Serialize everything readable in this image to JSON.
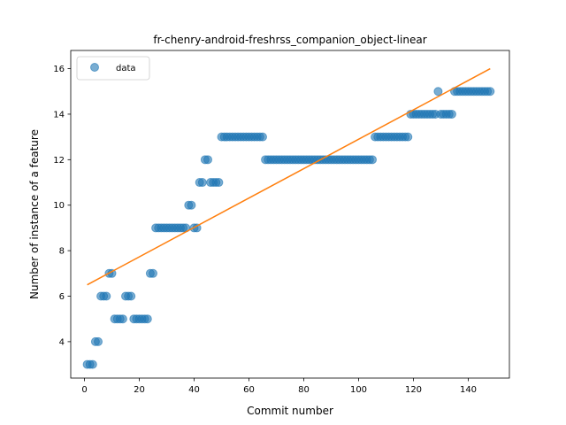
{
  "chart_data": {
    "type": "scatter",
    "title": "fr-chenry-android-freshrss_companion_object-linear",
    "xlabel": "Commit number",
    "ylabel": "Number of instance of a feature",
    "xlim": [
      -5,
      155
    ],
    "ylim": [
      2.4,
      16.8
    ],
    "xticks": [
      0,
      20,
      40,
      60,
      80,
      100,
      120,
      140
    ],
    "yticks": [
      4,
      6,
      8,
      10,
      12,
      14,
      16
    ],
    "grid": false,
    "legend": {
      "position": "upper-left",
      "entries": [
        "data"
      ]
    },
    "colors": {
      "points": "#1f77b4",
      "fit": "#ff7f0e"
    },
    "series": [
      {
        "name": "data",
        "kind": "scatter",
        "x": [
          1,
          2,
          3,
          4,
          5,
          6,
          7,
          8,
          9,
          10,
          11,
          12,
          13,
          14,
          15,
          16,
          17,
          18,
          19,
          20,
          21,
          22,
          23,
          24,
          25,
          26,
          27,
          28,
          29,
          30,
          31,
          32,
          33,
          34,
          35,
          36,
          37,
          38,
          39,
          40,
          41,
          42,
          43,
          44,
          45,
          46,
          47,
          48,
          49,
          50,
          51,
          52,
          53,
          54,
          55,
          56,
          57,
          58,
          59,
          60,
          61,
          62,
          63,
          64,
          65,
          66,
          67,
          68,
          69,
          70,
          71,
          72,
          73,
          74,
          75,
          76,
          77,
          78,
          79,
          80,
          81,
          82,
          83,
          84,
          85,
          86,
          87,
          88,
          89,
          90,
          91,
          92,
          93,
          94,
          95,
          96,
          97,
          98,
          99,
          100,
          101,
          102,
          103,
          104,
          105,
          106,
          107,
          108,
          109,
          110,
          111,
          112,
          113,
          114,
          115,
          116,
          117,
          118,
          119,
          120,
          121,
          122,
          123,
          124,
          125,
          126,
          127,
          128,
          129,
          130,
          131,
          132,
          133,
          134,
          135,
          136,
          137,
          138,
          139,
          140,
          141,
          142,
          143,
          144,
          145,
          146,
          147,
          148
        ],
        "y": [
          3,
          3,
          3,
          4,
          4,
          6,
          6,
          6,
          7,
          7,
          5,
          5,
          5,
          5,
          6,
          6,
          6,
          5,
          5,
          5,
          5,
          5,
          5,
          7,
          7,
          9,
          9,
          9,
          9,
          9,
          9,
          9,
          9,
          9,
          9,
          9,
          9,
          10,
          10,
          9,
          9,
          11,
          11,
          12,
          12,
          11,
          11,
          11,
          11,
          13,
          13,
          13,
          13,
          13,
          13,
          13,
          13,
          13,
          13,
          13,
          13,
          13,
          13,
          13,
          13,
          12,
          12,
          12,
          12,
          12,
          12,
          12,
          12,
          12,
          12,
          12,
          12,
          12,
          12,
          12,
          12,
          12,
          12,
          12,
          12,
          12,
          12,
          12,
          12,
          12,
          12,
          12,
          12,
          12,
          12,
          12,
          12,
          12,
          12,
          12,
          12,
          12,
          12,
          12,
          12,
          13,
          13,
          13,
          13,
          13,
          13,
          13,
          13,
          13,
          13,
          13,
          13,
          13,
          14,
          14,
          14,
          14,
          14,
          14,
          14,
          14,
          14,
          14,
          15,
          14,
          14,
          14,
          14,
          14,
          15,
          15,
          15,
          15,
          15,
          15,
          15,
          15,
          15,
          15,
          15,
          15,
          15,
          15
        ]
      },
      {
        "name": "",
        "kind": "line",
        "x": [
          1,
          148
        ],
        "y": [
          6.5,
          16.0
        ]
      }
    ]
  }
}
